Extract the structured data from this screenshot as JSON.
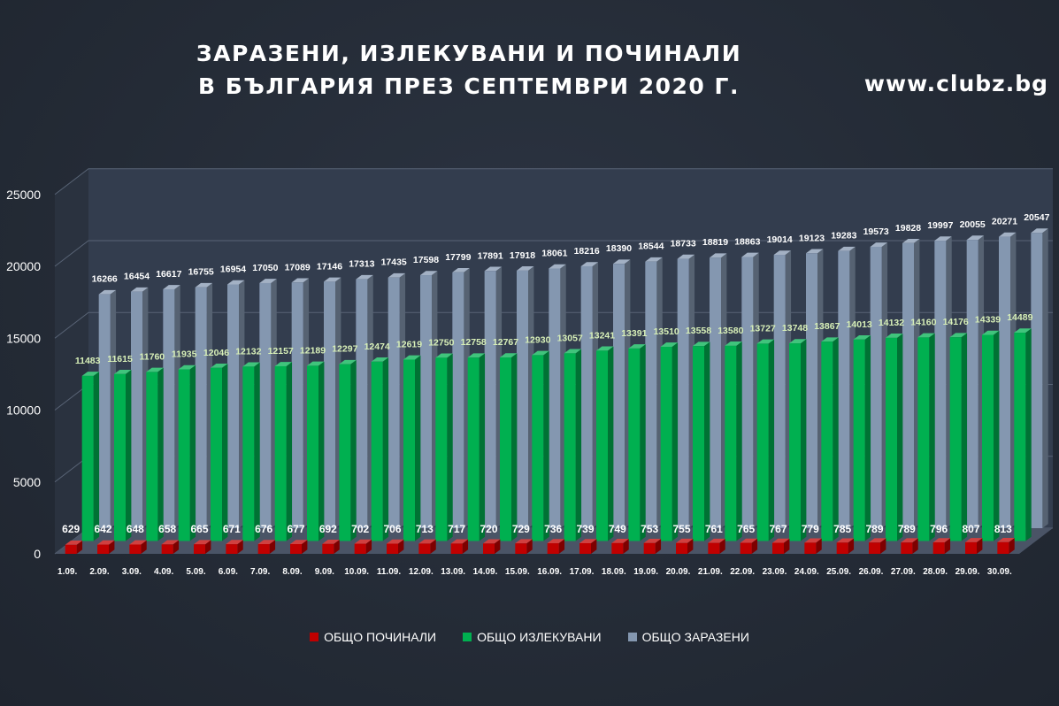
{
  "header": {
    "title_line1": "ЗАРАЗЕНИ, ИЗЛЕКУВАНИ И ПОЧИНАЛИ",
    "title_line2": "В БЪЛГАРИЯ ПРЕЗ СЕПТЕМВРИ 2020 Г.",
    "site": "www.clubz.bg"
  },
  "colors": {
    "deaths": "#c00000",
    "recovered": "#00b050",
    "infected": "#8497b0",
    "label_deaths": "#ffffff",
    "label_recovered": "#d8f0b8",
    "label_infected": "#ffffff"
  },
  "chart_data": {
    "type": "bar",
    "title": "ЗАРАЗЕНИ, ИЗЛЕКУВАНИ И ПОЧИНАЛИ В БЪЛГАРИЯ ПРЕЗ СЕПТЕМВРИ 2020 Г.",
    "xlabel": "",
    "ylabel": "",
    "ylim": [
      0,
      25000
    ],
    "yticks": [
      0,
      5000,
      10000,
      15000,
      20000,
      25000
    ],
    "grid": true,
    "legend_position": "bottom",
    "categories": [
      "1.09.",
      "2.09.",
      "3.09.",
      "4.09.",
      "5.09.",
      "6.09.",
      "7.09.",
      "8.09.",
      "9.09.",
      "10.09.",
      "11.09.",
      "12.09.",
      "13.09.",
      "14.09.",
      "15.09.",
      "16.09.",
      "17.09.",
      "18.09.",
      "19.09.",
      "20.09.",
      "21.09.",
      "22.09.",
      "23.09.",
      "24.09.",
      "25.09.",
      "26.09.",
      "27.09.",
      "28.09.",
      "29.09.",
      "30.09."
    ],
    "series": [
      {
        "name": "ОБЩО ПОЧИНАЛИ",
        "key": "deaths",
        "values": [
          629,
          642,
          648,
          658,
          665,
          671,
          676,
          677,
          692,
          702,
          706,
          713,
          717,
          720,
          729,
          736,
          739,
          749,
          753,
          755,
          761,
          765,
          767,
          779,
          785,
          789,
          789,
          796,
          807,
          813
        ]
      },
      {
        "name": "ОБЩО ИЗЛЕКУВАНИ",
        "key": "recovered",
        "values": [
          11483,
          11615,
          11760,
          11935,
          12046,
          12132,
          12157,
          12189,
          12297,
          12474,
          12619,
          12750,
          12758,
          12767,
          12930,
          13057,
          13241,
          13391,
          13510,
          13558,
          13580,
          13727,
          13748,
          13867,
          14013,
          14132,
          14160,
          14176,
          14339,
          14489
        ]
      },
      {
        "name": "ОБЩО ЗАРАЗЕНИ",
        "key": "infected",
        "values": [
          16266,
          16454,
          16617,
          16755,
          16954,
          17050,
          17089,
          17146,
          17313,
          17435,
          17598,
          17799,
          17891,
          17918,
          18061,
          18216,
          18390,
          18544,
          18733,
          18819,
          18863,
          19014,
          19123,
          19283,
          19573,
          19828,
          19997,
          20055,
          20271,
          20547
        ]
      }
    ]
  }
}
